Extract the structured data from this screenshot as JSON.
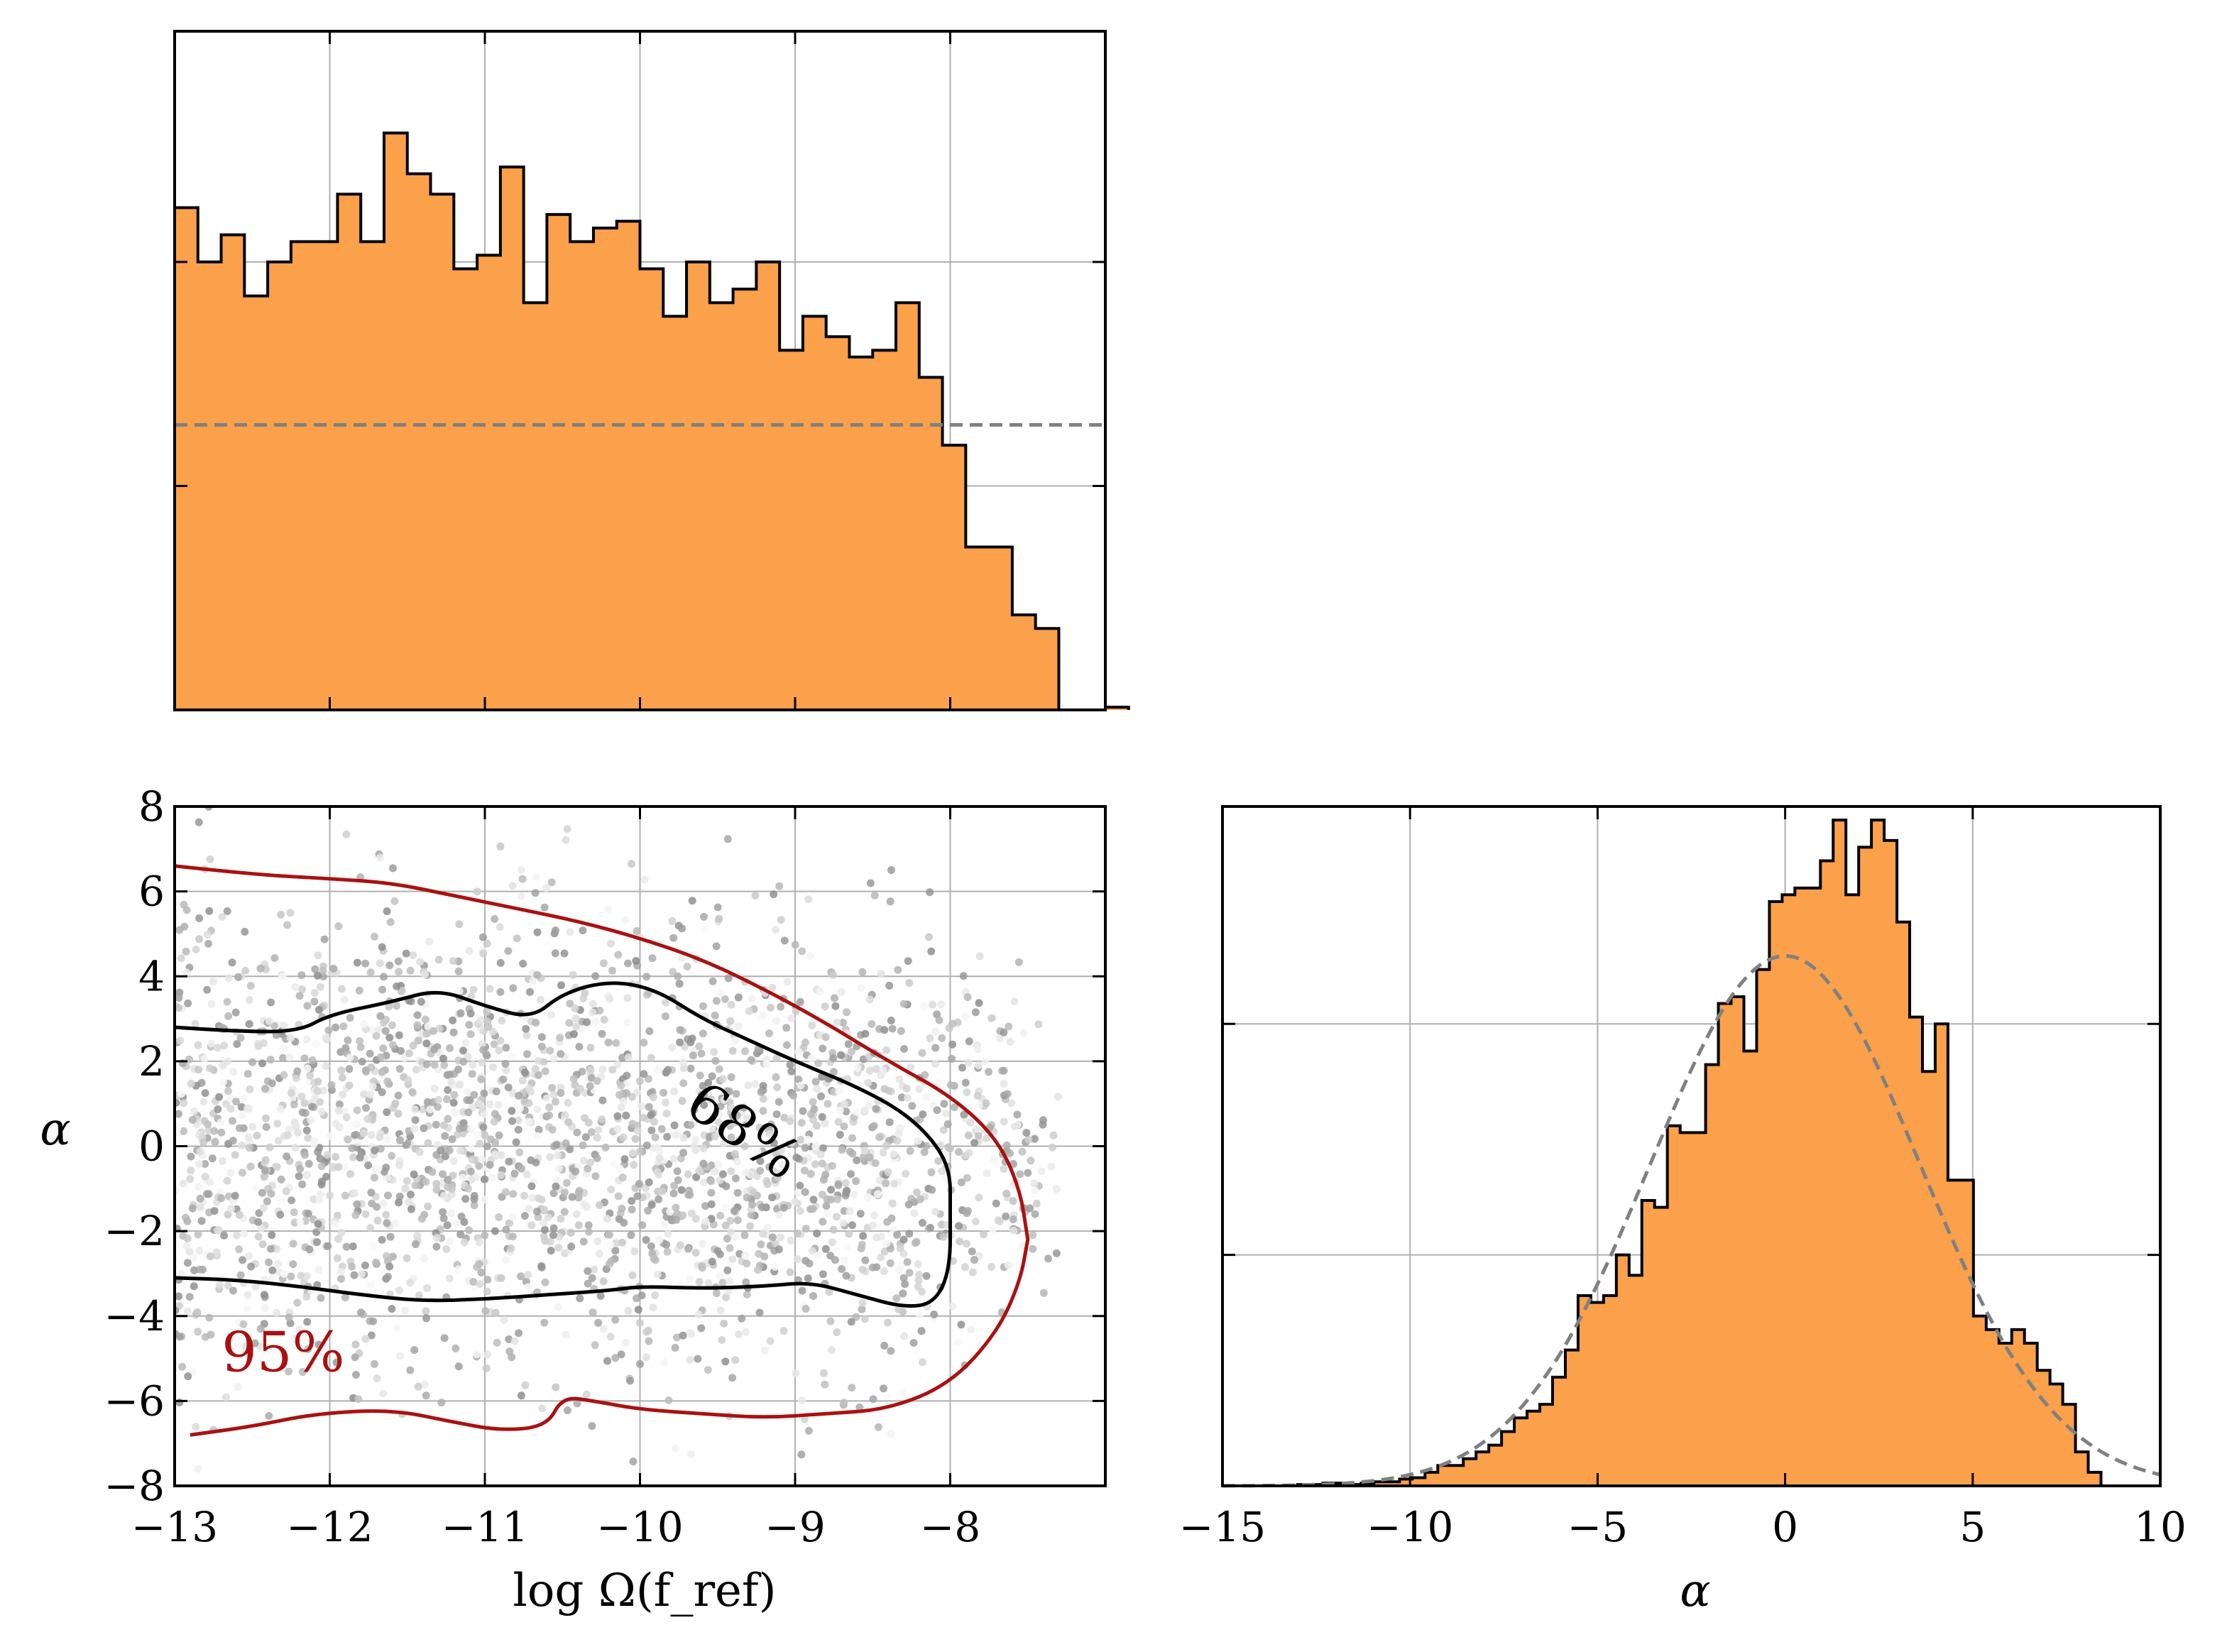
{
  "colors": {
    "hist_fill": "#fba04b",
    "hist_edge": "#000000",
    "prior_line": "#808080",
    "contour_68": "#000000",
    "contour_95": "#aa1111",
    "grid": "#b0b0b0"
  },
  "chart_data": [
    {
      "id": "top-left",
      "type": "bar",
      "title": "",
      "xlabel": "",
      "ylabel": "",
      "xlim": [
        -13.0,
        -7.0
      ],
      "ylim": [
        0,
        1.0
      ],
      "bin_edges_start": -13.0,
      "bin_width": 0.15,
      "values": [
        0.74,
        0.66,
        0.7,
        0.61,
        0.66,
        0.69,
        0.69,
        0.76,
        0.69,
        0.85,
        0.79,
        0.76,
        0.65,
        0.67,
        0.8,
        0.6,
        0.73,
        0.69,
        0.71,
        0.72,
        0.65,
        0.58,
        0.66,
        0.6,
        0.62,
        0.66,
        0.53,
        0.58,
        0.55,
        0.52,
        0.53,
        0.6,
        0.49,
        0.39,
        0.24,
        0.24,
        0.14,
        0.12,
        0.0,
        0.0,
        0.004
      ],
      "prior_level": 0.42,
      "xticks": [
        -12,
        -11,
        -10,
        -9,
        -8
      ],
      "yticks": [
        0.33,
        0.66
      ]
    },
    {
      "id": "bottom-left",
      "type": "scatter",
      "title": "",
      "xlabel": "log Ω(f_ref)",
      "ylabel": "α",
      "xlim": [
        -13.0,
        -7.0
      ],
      "ylim": [
        -8,
        8
      ],
      "xticks": [
        -13,
        -12,
        -11,
        -10,
        -9,
        -8
      ],
      "xtick_labels": [
        "−13",
        "−12",
        "−11",
        "−10",
        "−9",
        "−8"
      ],
      "yticks": [
        -8,
        -6,
        -4,
        -2,
        0,
        2,
        4,
        6,
        8
      ],
      "ytick_labels": [
        "−8",
        "−6",
        "−4",
        "−2",
        "0",
        "2",
        "4",
        "6",
        "8"
      ],
      "contour_labels": [
        {
          "text": "68%",
          "x": -9.4,
          "y": 0.0,
          "rotation": -35,
          "color": "#000000"
        },
        {
          "text": "95%",
          "x": -12.3,
          "y": -5.3,
          "rotation": 0,
          "color": "#aa1111"
        }
      ],
      "contour_68": {
        "upper": [
          [
            -13.0,
            2.8
          ],
          [
            -12.6,
            2.7
          ],
          [
            -12.2,
            2.7
          ],
          [
            -12.0,
            3.1
          ],
          [
            -11.6,
            3.4
          ],
          [
            -11.3,
            3.7
          ],
          [
            -11.0,
            3.3
          ],
          [
            -10.7,
            3.0
          ],
          [
            -10.5,
            3.6
          ],
          [
            -10.2,
            3.9
          ],
          [
            -9.9,
            3.7
          ],
          [
            -9.6,
            3.0
          ],
          [
            -9.3,
            2.5
          ],
          [
            -9.0,
            2.0
          ],
          [
            -8.6,
            1.4
          ],
          [
            -8.3,
            0.8
          ],
          [
            -8.1,
            0.1
          ],
          [
            -8.0,
            -0.6
          ],
          [
            -8.0,
            -1.5
          ]
        ],
        "lower": [
          [
            -13.0,
            -3.1
          ],
          [
            -12.6,
            -3.15
          ],
          [
            -12.2,
            -3.3
          ],
          [
            -11.8,
            -3.5
          ],
          [
            -11.4,
            -3.65
          ],
          [
            -11.0,
            -3.6
          ],
          [
            -10.6,
            -3.5
          ],
          [
            -10.2,
            -3.4
          ],
          [
            -10.0,
            -3.3
          ],
          [
            -9.6,
            -3.35
          ],
          [
            -9.2,
            -3.3
          ],
          [
            -8.9,
            -3.2
          ],
          [
            -8.6,
            -3.5
          ],
          [
            -8.3,
            -3.8
          ],
          [
            -8.1,
            -3.7
          ],
          [
            -8.0,
            -2.9
          ],
          [
            -8.0,
            -1.5
          ]
        ]
      },
      "contour_95": {
        "upper": [
          [
            -13.0,
            6.6
          ],
          [
            -12.5,
            6.4
          ],
          [
            -12.0,
            6.3
          ],
          [
            -11.6,
            6.2
          ],
          [
            -11.2,
            5.9
          ],
          [
            -10.8,
            5.6
          ],
          [
            -10.4,
            5.3
          ],
          [
            -10.0,
            4.9
          ],
          [
            -9.6,
            4.4
          ],
          [
            -9.2,
            3.7
          ],
          [
            -8.8,
            2.9
          ],
          [
            -8.4,
            2.0
          ],
          [
            -8.0,
            1.2
          ],
          [
            -7.7,
            0.2
          ],
          [
            -7.55,
            -1.0
          ],
          [
            -7.5,
            -2.2
          ]
        ],
        "lower": [
          [
            -12.9,
            -6.8
          ],
          [
            -12.5,
            -6.6
          ],
          [
            -12.1,
            -6.3
          ],
          [
            -11.6,
            -6.2
          ],
          [
            -11.2,
            -6.5
          ],
          [
            -10.9,
            -6.7
          ],
          [
            -10.6,
            -6.6
          ],
          [
            -10.5,
            -5.9
          ],
          [
            -10.3,
            -6.0
          ],
          [
            -10.0,
            -6.2
          ],
          [
            -9.6,
            -6.3
          ],
          [
            -9.2,
            -6.4
          ],
          [
            -8.8,
            -6.3
          ],
          [
            -8.4,
            -6.2
          ],
          [
            -8.0,
            -5.6
          ],
          [
            -7.7,
            -4.4
          ],
          [
            -7.55,
            -3.2
          ],
          [
            -7.5,
            -2.2
          ]
        ]
      }
    },
    {
      "id": "bottom-right",
      "type": "bar",
      "title": "",
      "xlabel": "α",
      "ylabel": "",
      "xlim": [
        -15,
        10
      ],
      "ylim": [
        0,
        1.0
      ],
      "xticks": [
        -15,
        -10,
        -5,
        0,
        5,
        10
      ],
      "xtick_labels": [
        "−15",
        "−10",
        "−5",
        "0",
        "5",
        "10"
      ],
      "yticks": [
        0.34,
        0.68
      ],
      "bin_edges_start": -13.0,
      "bin_width": 0.34,
      "values": [
        0.002,
        0.002,
        0.004,
        0.004,
        0.002,
        0.004,
        0.006,
        0.006,
        0.01,
        0.012,
        0.02,
        0.03,
        0.03,
        0.04,
        0.05,
        0.06,
        0.08,
        0.1,
        0.11,
        0.12,
        0.16,
        0.2,
        0.28,
        0.27,
        0.28,
        0.34,
        0.31,
        0.42,
        0.41,
        0.53,
        0.52,
        0.52,
        0.62,
        0.71,
        0.72,
        0.64,
        0.76,
        0.86,
        0.87,
        0.88,
        0.88,
        0.92,
        0.98,
        0.87,
        0.94,
        0.98,
        0.95,
        0.83,
        0.69,
        0.61,
        0.68,
        0.45,
        0.45,
        0.25,
        0.23,
        0.21,
        0.23,
        0.21,
        0.17,
        0.15,
        0.12,
        0.05,
        0.02
      ],
      "prior_gauss_mean": 0.0,
      "prior_gauss_sigma": 3.6,
      "prior_gauss_peak": 0.78
    }
  ]
}
